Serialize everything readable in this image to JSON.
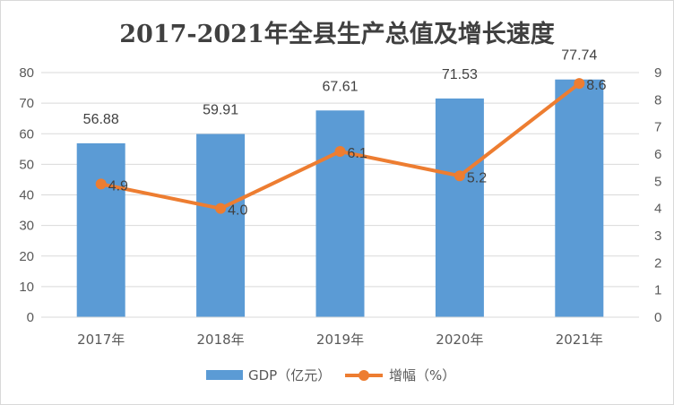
{
  "chart_data": {
    "type": "bar+line",
    "title": "2017-2021年全县生产总值及增长速度",
    "categories": [
      "2017年",
      "2018年",
      "2019年",
      "2020年",
      "2021年"
    ],
    "series": [
      {
        "name": "GDP（亿元）",
        "type": "bar",
        "axis": "left",
        "values": [
          56.88,
          59.91,
          67.61,
          71.53,
          77.74
        ],
        "labels": [
          "56.88",
          "59.91",
          "67.61",
          "71.53",
          "77.74"
        ],
        "color": "#5b9bd5"
      },
      {
        "name": "增幅（%）",
        "type": "line",
        "axis": "right",
        "values": [
          4.9,
          4.0,
          6.1,
          5.2,
          8.6
        ],
        "labels": [
          "4.9",
          "4.0",
          "6.1",
          "5.2",
          "8.6"
        ],
        "color": "#ed7d31"
      }
    ],
    "y_left": {
      "min": 0,
      "max": 80,
      "step": 10
    },
    "y_right": {
      "min": 0,
      "max": 9,
      "step": 1
    },
    "grid": true,
    "legend": "bottom"
  }
}
